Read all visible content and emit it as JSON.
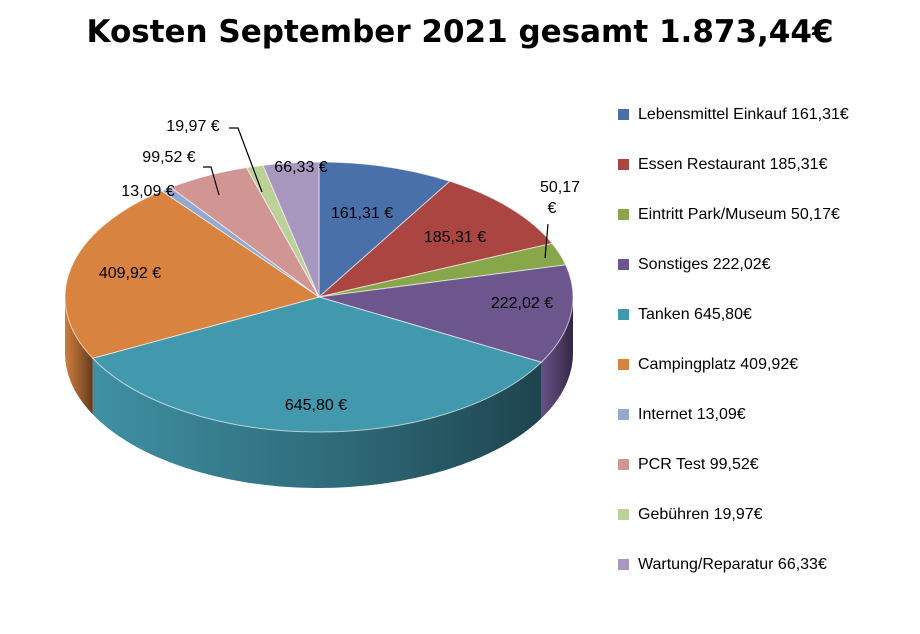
{
  "chart_data": {
    "type": "pie",
    "title": "Kosten September 2021 gesamt 1.873,44€",
    "legend_position": "right",
    "three_d": true,
    "slices": [
      {
        "label": "Lebensmittel Einkauf 161,31€",
        "value": 161.31,
        "data_label": "161,31 €",
        "color": "#4a70a9"
      },
      {
        "label": "Essen Restaurant 185,31€",
        "value": 185.31,
        "data_label": "185,31 €",
        "color": "#ab4542"
      },
      {
        "label": "Eintritt Park/Museum 50,17€",
        "value": 50.17,
        "data_label": "50,17 €",
        "color": "#87a74a"
      },
      {
        "label": "Sonstiges 222,02€",
        "value": 222.02,
        "data_label": "222,02 €",
        "color": "#6d558e"
      },
      {
        "label": "Tanken 645,80€",
        "value": 645.8,
        "data_label": "645,80 €",
        "color": "#4298ac"
      },
      {
        "label": "Campingplatz 409,92€",
        "value": 409.92,
        "data_label": "409,92 €",
        "color": "#d98340"
      },
      {
        "label": "Internet 13,09€",
        "value": 13.09,
        "data_label": "13,09 €",
        "color": "#93a9d0"
      },
      {
        "label": "PCR Test 99,52€",
        "value": 99.52,
        "data_label": "99,52 €",
        "color": "#d19593"
      },
      {
        "label": "Gebühren 19,97€",
        "value": 19.97,
        "data_label": "19,97 €",
        "color": "#bbd197"
      },
      {
        "label": "Wartung/Reparatur 66,33€",
        "value": 66.33,
        "data_label": "66,33 €",
        "color": "#a897bf"
      }
    ]
  }
}
